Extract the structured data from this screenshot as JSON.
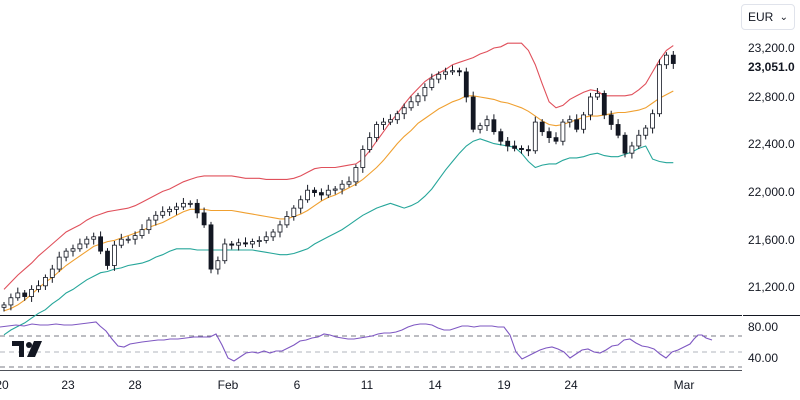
{
  "currency_selector": {
    "value": "EUR",
    "icon": "chevron-down-icon"
  },
  "logo": {
    "icon": "tradingview-logo-icon"
  },
  "price_pane": {
    "last_price_label": "23,051.0",
    "y_ticks": [
      "23,200.0",
      "22,800.0",
      "22,400.0",
      "22,000.0",
      "21,600.0",
      "21,200.0"
    ]
  },
  "rsi_pane": {
    "y_ticks": [
      "80.00",
      "40.00"
    ]
  },
  "x_ticks": [
    "20",
    "23",
    "28",
    "Feb",
    "6",
    "11",
    "14",
    "19",
    "24",
    "Mar"
  ],
  "colors": {
    "candle": "#131722",
    "upper_band": "#e0505b",
    "middle_band": "#f0a030",
    "lower_band": "#26a69a",
    "rsi_line": "#7e57c2",
    "grid": "#c8ccd6"
  },
  "chart_data": {
    "type": "candlestick",
    "ylim": [
      21100,
      23350
    ],
    "y_ticks": [
      23200,
      22800,
      22400,
      22000,
      21600,
      21200
    ],
    "last_price": 23051,
    "close": [
      21050,
      21110,
      21150,
      21120,
      21180,
      21210,
      21280,
      21350,
      21450,
      21500,
      21520,
      21560,
      21600,
      21620,
      21500,
      21380,
      21550,
      21600,
      21600,
      21630,
      21680,
      21760,
      21800,
      21830,
      21850,
      21870,
      21900,
      21900,
      21820,
      21720,
      21350,
      21420,
      21560,
      21550,
      21570,
      21560,
      21580,
      21590,
      21620,
      21660,
      21720,
      21790,
      21860,
      21930,
      22010,
      21990,
      21970,
      22010,
      22020,
      22060,
      22080,
      22200,
      22350,
      22450,
      22560,
      22580,
      22600,
      22650,
      22700,
      22750,
      22800,
      22870,
      22940,
      22980,
      23000,
      23010,
      23000,
      22790,
      22520,
      22550,
      22600,
      22500,
      22420,
      22380,
      22360,
      22350,
      22340,
      22580,
      22500,
      22450,
      22420,
      22580,
      22600,
      22520,
      22640,
      22790,
      22820,
      22640,
      22560,
      22470,
      22320,
      22380,
      22470,
      22530,
      22650,
      23060,
      23140,
      23070
    ],
    "upper_band": [
      21180,
      21240,
      21300,
      21350,
      21400,
      21460,
      21510,
      21560,
      21610,
      21660,
      21690,
      21720,
      21760,
      21790,
      21810,
      21830,
      21840,
      21850,
      21860,
      21880,
      21910,
      21940,
      21970,
      22000,
      22020,
      22050,
      22080,
      22100,
      22120,
      22130,
      22130,
      22130,
      22130,
      22130,
      22120,
      22110,
      22110,
      22110,
      22100,
      22100,
      22100,
      22100,
      22110,
      22130,
      22160,
      22190,
      22200,
      22200,
      22200,
      22210,
      22220,
      22230,
      22270,
      22340,
      22420,
      22500,
      22580,
      22650,
      22730,
      22800,
      22860,
      22920,
      22960,
      22990,
      23020,
      23060,
      23080,
      23100,
      23120,
      23150,
      23170,
      23200,
      23210,
      23240,
      23240,
      23240,
      23180,
      23060,
      22900,
      22750,
      22700,
      22720,
      22770,
      22800,
      22830,
      22850,
      22840,
      22800,
      22800,
      22800,
      22800,
      22810,
      22850,
      22900,
      23000,
      23100,
      23180,
      23220
    ],
    "middle_band": [
      21000,
      21020,
      21050,
      21090,
      21140,
      21190,
      21240,
      21280,
      21330,
      21380,
      21420,
      21460,
      21500,
      21540,
      21560,
      21580,
      21590,
      21610,
      21630,
      21650,
      21670,
      21700,
      21720,
      21740,
      21770,
      21800,
      21830,
      21850,
      21850,
      21850,
      21840,
      21840,
      21840,
      21840,
      21830,
      21820,
      21810,
      21800,
      21790,
      21780,
      21770,
      21770,
      21790,
      21810,
      21840,
      21880,
      21920,
      21950,
      21970,
      22000,
      22030,
      22060,
      22100,
      22150,
      22200,
      22260,
      22330,
      22400,
      22460,
      22510,
      22570,
      22610,
      22650,
      22690,
      22720,
      22750,
      22770,
      22800,
      22800,
      22790,
      22780,
      22770,
      22750,
      22740,
      22720,
      22700,
      22670,
      22630,
      22590,
      22560,
      22550,
      22560,
      22580,
      22600,
      22620,
      22630,
      22630,
      22640,
      22650,
      22660,
      22660,
      22670,
      22680,
      22700,
      22740,
      22780,
      22810,
      22840
    ],
    "lower_band": [
      20800,
      20840,
      20870,
      20900,
      20940,
      20980,
      21010,
      21060,
      21100,
      21150,
      21180,
      21220,
      21260,
      21290,
      21320,
      21330,
      21350,
      21360,
      21380,
      21390,
      21400,
      21420,
      21450,
      21470,
      21500,
      21520,
      21520,
      21520,
      21510,
      21510,
      21510,
      21510,
      21510,
      21510,
      21510,
      21510,
      21510,
      21500,
      21490,
      21480,
      21470,
      21470,
      21480,
      21500,
      21520,
      21560,
      21590,
      21620,
      21650,
      21680,
      21720,
      21760,
      21800,
      21830,
      21860,
      21880,
      21900,
      21880,
      21860,
      21880,
      21910,
      21960,
      22020,
      22100,
      22180,
      22250,
      22320,
      22380,
      22420,
      22440,
      22420,
      22400,
      22390,
      22380,
      22370,
      22320,
      22250,
      22200,
      22220,
      22230,
      22230,
      22260,
      22280,
      22280,
      22290,
      22310,
      22320,
      22300,
      22290,
      22290,
      22310,
      22330,
      22360,
      22380,
      22270,
      22250,
      22240,
      22240
    ]
  }
}
